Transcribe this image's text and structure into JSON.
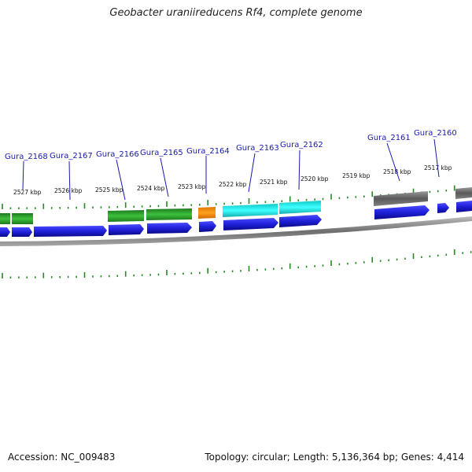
{
  "title": "Geobacter uraniireducens Rf4, complete genome",
  "footer": {
    "accession": "Accession: NC_009483",
    "summary": "Topology: circular; Length: 5,136,364 bp; Genes: 4,414"
  },
  "colors": {
    "forward_cds": "#1f1fd8",
    "label_blue": "#1a1aaa",
    "tick_green": "#228b22",
    "green_feature": "#2fa52f",
    "orange_feature": "#ff9900",
    "cyan_feature": "#19e6e6",
    "gray_feature": "#707070",
    "backbone": "#8c8c8c"
  },
  "ticks": [
    {
      "label": "2527 kbp"
    },
    {
      "label": "2526 kbp"
    },
    {
      "label": "2525 kbp"
    },
    {
      "label": "2524 kbp"
    },
    {
      "label": "2523 kbp"
    },
    {
      "label": "2522 kbp"
    },
    {
      "label": "2521 kbp"
    },
    {
      "label": "2520 kbp"
    },
    {
      "label": "2519 kbp"
    },
    {
      "label": "2518 kbp"
    },
    {
      "label": "2517 kbp"
    }
  ],
  "genes": [
    {
      "label": "Gura_2168"
    },
    {
      "label": "Gura_2167"
    },
    {
      "label": "Gura_2166"
    },
    {
      "label": "Gura_2165"
    },
    {
      "label": "Gura_2164"
    },
    {
      "label": "Gura_2163"
    },
    {
      "label": "Gura_2162"
    },
    {
      "label": "Gura_2161"
    },
    {
      "label": "Gura_2160"
    }
  ]
}
